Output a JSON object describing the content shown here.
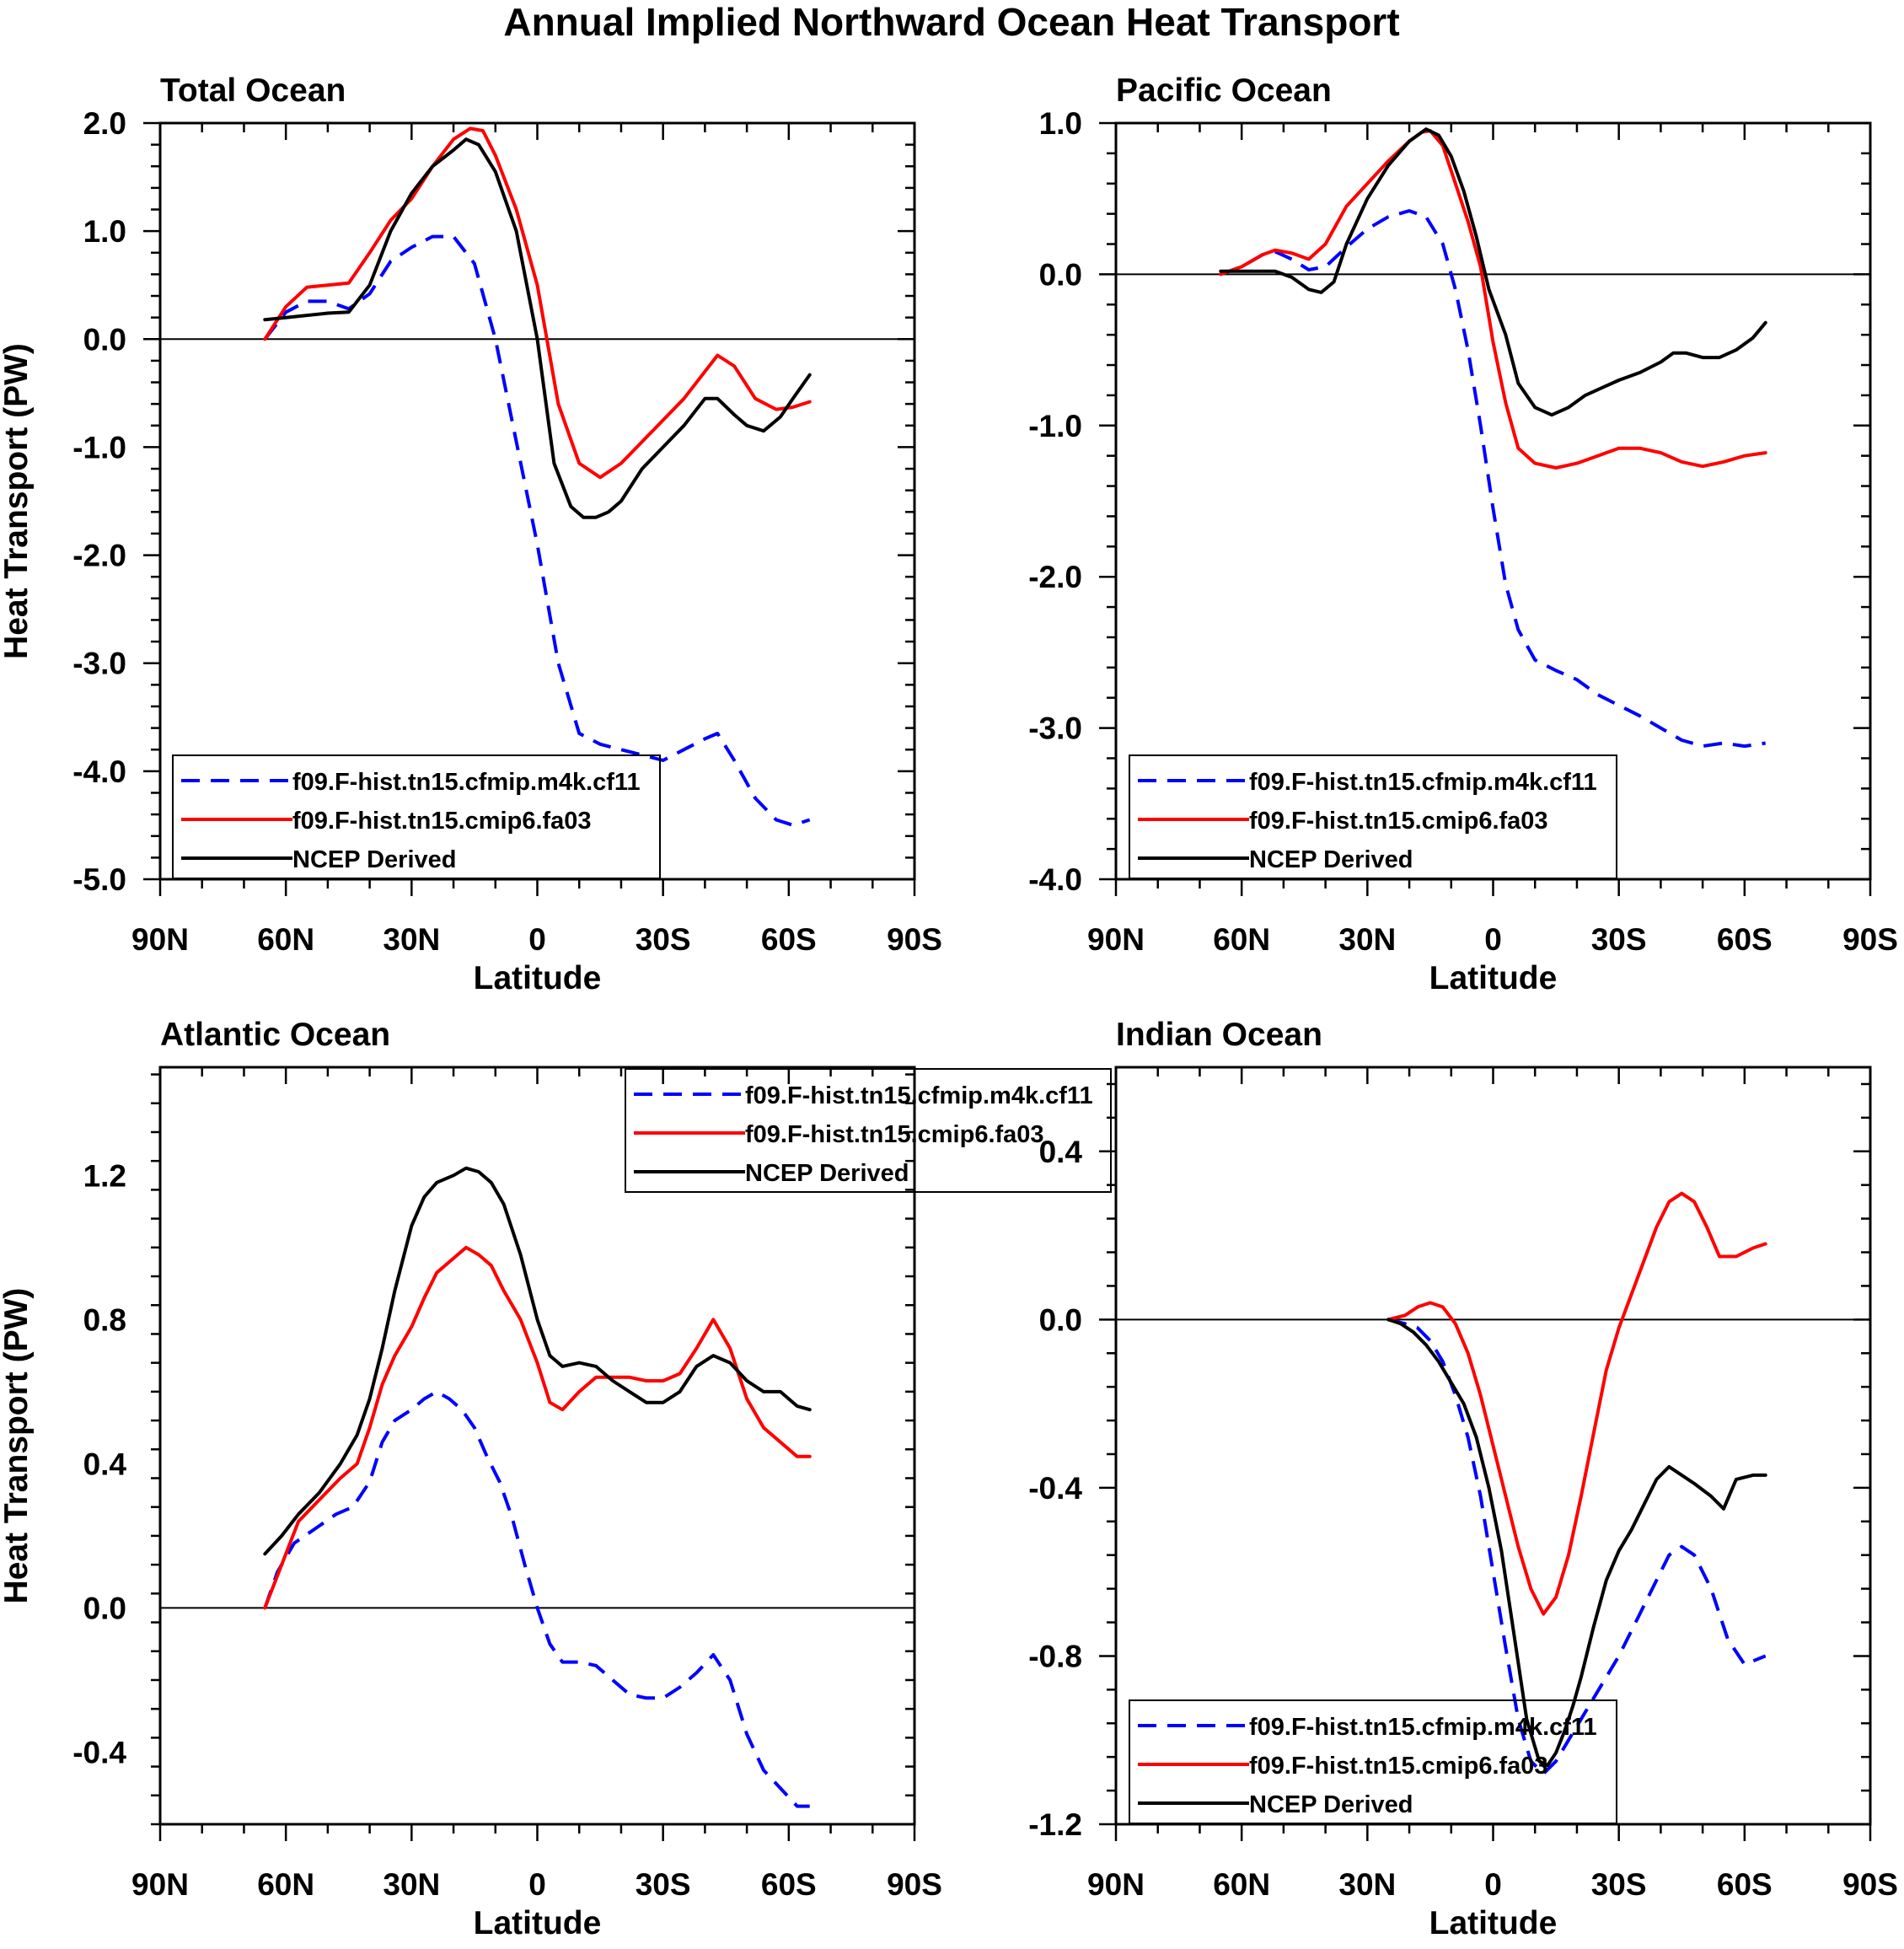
{
  "figure": {
    "title": "Annual Implied Northward Ocean Heat Transport"
  },
  "colors": {
    "model_a": "#0000ff",
    "model_b": "#ff0000",
    "obs": "#000000"
  },
  "legend_labels": [
    "f09.F-hist.tn15.cfmip.m4k.cf11",
    "f09.F-hist.tn15.cmip6.fa03",
    "NCEP Derived"
  ],
  "chart_data": [
    {
      "type": "line",
      "title": "Total Ocean",
      "xlabel": "Latitude",
      "ylabel": "Heat Transport (PW)",
      "xlim": [
        90,
        -90
      ],
      "ylim": [
        -5.0,
        2.0
      ],
      "xticks": [
        90,
        60,
        30,
        0,
        -30,
        -60,
        -90
      ],
      "xticklabels": [
        "90N",
        "60N",
        "30N",
        "0",
        "30S",
        "60S",
        "90S"
      ],
      "yticks": [
        2.0,
        1.0,
        0.0,
        -1.0,
        -2.0,
        -3.0,
        -4.0,
        -5.0
      ],
      "yticklabels": [
        "2.0",
        "1.0",
        "0.0",
        "-1.0",
        "-2.0",
        "-3.0",
        "-4.0",
        "-5.0"
      ],
      "legend_position": "bottom-left",
      "series": [
        {
          "name": "f09.F-hist.tn15.cfmip.m4k.cf11",
          "style": "dashed",
          "color": "#0000ff",
          "x": [
            65,
            60,
            55,
            50,
            45,
            40,
            35,
            30,
            25,
            20,
            15,
            10,
            5,
            0,
            -5,
            -10,
            -15,
            -20,
            -25,
            -30,
            -35,
            -40,
            -43,
            -47,
            -52,
            -57,
            -61,
            -65
          ],
          "y": [
            0.0,
            0.25,
            0.35,
            0.35,
            0.28,
            0.42,
            0.72,
            0.85,
            0.95,
            0.95,
            0.7,
            0.0,
            -0.95,
            -1.9,
            -3.0,
            -3.65,
            -3.75,
            -3.8,
            -3.85,
            -3.9,
            -3.8,
            -3.7,
            -3.65,
            -3.9,
            -4.25,
            -4.45,
            -4.5,
            -4.45
          ]
        },
        {
          "name": "f09.F-hist.tn15.cmip6.fa03",
          "style": "solid",
          "color": "#ff0000",
          "x": [
            65,
            60,
            55,
            50,
            45,
            40,
            35,
            30,
            25,
            20,
            16,
            13,
            10,
            5,
            0,
            -5,
            -10,
            -15,
            -20,
            -25,
            -30,
            -35,
            -40,
            -43,
            -47,
            -52,
            -57,
            -61,
            -65
          ],
          "y": [
            0.0,
            0.3,
            0.48,
            0.5,
            0.52,
            0.8,
            1.1,
            1.3,
            1.6,
            1.85,
            1.95,
            1.93,
            1.7,
            1.2,
            0.5,
            -0.6,
            -1.15,
            -1.28,
            -1.15,
            -0.95,
            -0.75,
            -0.55,
            -0.3,
            -0.15,
            -0.25,
            -0.55,
            -0.65,
            -0.63,
            -0.58
          ]
        },
        {
          "name": "NCEP Derived",
          "style": "solid",
          "color": "#000000",
          "x": [
            65,
            60,
            55,
            50,
            45,
            40,
            35,
            30,
            25,
            20,
            17,
            14,
            10,
            5,
            0,
            -4,
            -8,
            -11,
            -14,
            -17,
            -20,
            -25,
            -30,
            -35,
            -40,
            -43,
            -47,
            -50,
            -54,
            -58,
            -61,
            -65
          ],
          "y": [
            0.18,
            0.2,
            0.22,
            0.24,
            0.25,
            0.5,
            1.0,
            1.35,
            1.6,
            1.75,
            1.85,
            1.8,
            1.55,
            1.0,
            0.0,
            -1.15,
            -1.55,
            -1.65,
            -1.65,
            -1.6,
            -1.5,
            -1.2,
            -1.0,
            -0.8,
            -0.55,
            -0.55,
            -0.7,
            -0.8,
            -0.85,
            -0.72,
            -0.55,
            -0.33
          ]
        }
      ]
    },
    {
      "type": "line",
      "title": "Pacific Ocean",
      "xlabel": "Latitude",
      "ylabel": "",
      "xlim": [
        90,
        -90
      ],
      "ylim": [
        -4.0,
        1.0
      ],
      "xticks": [
        90,
        60,
        30,
        0,
        -30,
        -60,
        -90
      ],
      "xticklabels": [
        "90N",
        "60N",
        "30N",
        "0",
        "30S",
        "60S",
        "90S"
      ],
      "yticks": [
        1.0,
        0.0,
        -1.0,
        -2.0,
        -3.0,
        -4.0
      ],
      "yticklabels": [
        "1.0",
        "0.0",
        "-1.0",
        "-2.0",
        "-3.0",
        "-4.0"
      ],
      "legend_position": "bottom-left",
      "series": [
        {
          "name": "f09.F-hist.tn15.cfmip.m4k.cf11",
          "style": "dashed",
          "color": "#0000ff",
          "x": [
            65,
            60,
            55,
            52,
            48,
            44,
            40,
            35,
            30,
            25,
            20,
            16,
            12,
            9,
            6,
            3,
            0,
            -3,
            -6,
            -10,
            -15,
            -20,
            -25,
            -30,
            -35,
            -40,
            -45,
            -50,
            -55,
            -60,
            -65
          ],
          "y": [
            0.0,
            0.05,
            0.13,
            0.15,
            0.1,
            0.03,
            0.05,
            0.18,
            0.3,
            0.38,
            0.42,
            0.38,
            0.2,
            -0.1,
            -0.5,
            -1.0,
            -1.55,
            -2.05,
            -2.35,
            -2.55,
            -2.62,
            -2.68,
            -2.78,
            -2.85,
            -2.92,
            -3.0,
            -3.08,
            -3.12,
            -3.1,
            -3.12,
            -3.1
          ]
        },
        {
          "name": "f09.F-hist.tn15.cmip6.fa03",
          "style": "solid",
          "color": "#ff0000",
          "x": [
            65,
            60,
            55,
            52,
            48,
            44,
            40,
            35,
            30,
            25,
            20,
            17,
            15,
            12,
            9,
            6,
            3,
            0,
            -3,
            -6,
            -10,
            -15,
            -20,
            -25,
            -30,
            -35,
            -40,
            -45,
            -50,
            -55,
            -60,
            -65
          ],
          "y": [
            0.0,
            0.05,
            0.13,
            0.16,
            0.14,
            0.1,
            0.2,
            0.45,
            0.6,
            0.75,
            0.88,
            0.94,
            0.95,
            0.85,
            0.6,
            0.35,
            0.05,
            -0.45,
            -0.85,
            -1.15,
            -1.25,
            -1.28,
            -1.25,
            -1.2,
            -1.15,
            -1.15,
            -1.18,
            -1.24,
            -1.27,
            -1.24,
            -1.2,
            -1.18
          ]
        },
        {
          "name": "NCEP Derived",
          "style": "solid",
          "color": "#000000",
          "x": [
            65,
            60,
            55,
            52,
            48,
            44,
            41,
            38,
            35,
            30,
            25,
            20,
            16,
            13,
            10,
            7,
            4,
            1,
            -3,
            -6,
            -10,
            -14,
            -18,
            -22,
            -26,
            -30,
            -35,
            -40,
            -43,
            -46,
            -50,
            -54,
            -58,
            -62,
            -65
          ],
          "y": [
            0.02,
            0.02,
            0.02,
            0.02,
            -0.02,
            -0.1,
            -0.12,
            -0.05,
            0.2,
            0.5,
            0.72,
            0.88,
            0.96,
            0.92,
            0.78,
            0.55,
            0.25,
            -0.1,
            -0.4,
            -0.72,
            -0.88,
            -0.93,
            -0.88,
            -0.8,
            -0.75,
            -0.7,
            -0.65,
            -0.58,
            -0.52,
            -0.52,
            -0.55,
            -0.55,
            -0.5,
            -0.42,
            -0.32
          ]
        }
      ]
    },
    {
      "type": "line",
      "title": "Atlantic Ocean",
      "xlabel": "Latitude",
      "ylabel": "Heat Transport (PW)",
      "xlim": [
        90,
        -90
      ],
      "ylim": [
        -0.6,
        1.5
      ],
      "xticks": [
        90,
        60,
        30,
        0,
        -30,
        -60,
        -90
      ],
      "xticklabels": [
        "90N",
        "60N",
        "30N",
        "0",
        "30S",
        "60S",
        "90S"
      ],
      "yticks": [
        1.2,
        0.8,
        0.4,
        0.0,
        -0.4
      ],
      "yticklabels": [
        "1.2",
        "0.8",
        "0.4",
        "0.0",
        "-0.4"
      ],
      "legend_position": "top-right",
      "series": [
        {
          "name": "f09.F-hist.tn15.cfmip.m4k.cf11",
          "style": "dashed",
          "color": "#0000ff",
          "x": [
            65,
            62,
            58,
            53,
            48,
            44,
            40,
            37,
            34,
            30,
            27,
            24,
            21,
            18,
            15,
            12,
            9,
            6,
            3,
            0,
            -3,
            -6,
            -10,
            -14,
            -18,
            -22,
            -26,
            -30,
            -34,
            -38,
            -42,
            -46,
            -50,
            -54,
            -58,
            -62,
            -65
          ],
          "y": [
            0.0,
            0.1,
            0.18,
            0.22,
            0.26,
            0.28,
            0.35,
            0.46,
            0.52,
            0.55,
            0.58,
            0.6,
            0.58,
            0.55,
            0.5,
            0.42,
            0.35,
            0.25,
            0.12,
            0.0,
            -0.1,
            -0.15,
            -0.15,
            -0.16,
            -0.2,
            -0.24,
            -0.25,
            -0.25,
            -0.22,
            -0.18,
            -0.13,
            -0.2,
            -0.35,
            -0.45,
            -0.5,
            -0.55,
            -0.55
          ]
        },
        {
          "name": "f09.F-hist.tn15.cmip6.fa03",
          "style": "solid",
          "color": "#ff0000",
          "x": [
            65,
            61,
            57,
            52,
            47,
            43,
            40,
            37,
            34,
            30,
            27,
            24,
            20,
            17,
            14,
            11,
            8,
            4,
            0,
            -3,
            -6,
            -10,
            -14,
            -18,
            -22,
            -26,
            -30,
            -34,
            -38,
            -42,
            -46,
            -50,
            -54,
            -58,
            -62,
            -65
          ],
          "y": [
            0.0,
            0.12,
            0.24,
            0.3,
            0.36,
            0.4,
            0.5,
            0.62,
            0.7,
            0.78,
            0.86,
            0.93,
            0.97,
            1.0,
            0.98,
            0.95,
            0.88,
            0.8,
            0.68,
            0.57,
            0.55,
            0.6,
            0.64,
            0.64,
            0.64,
            0.63,
            0.63,
            0.65,
            0.72,
            0.8,
            0.72,
            0.58,
            0.5,
            0.46,
            0.42,
            0.42
          ]
        },
        {
          "name": "NCEP Derived",
          "style": "solid",
          "color": "#000000",
          "x": [
            65,
            61,
            57,
            52,
            47,
            43,
            40,
            37,
            34,
            30,
            27,
            24,
            20,
            17,
            14,
            11,
            8,
            4,
            0,
            -3,
            -6,
            -10,
            -14,
            -18,
            -22,
            -26,
            -30,
            -34,
            -38,
            -42,
            -46,
            -50,
            -54,
            -58,
            -62,
            -65
          ],
          "y": [
            0.15,
            0.2,
            0.26,
            0.32,
            0.4,
            0.48,
            0.58,
            0.72,
            0.88,
            1.06,
            1.14,
            1.18,
            1.2,
            1.22,
            1.21,
            1.18,
            1.12,
            0.98,
            0.8,
            0.7,
            0.67,
            0.68,
            0.67,
            0.63,
            0.6,
            0.57,
            0.57,
            0.6,
            0.67,
            0.7,
            0.68,
            0.63,
            0.6,
            0.6,
            0.56,
            0.55
          ]
        }
      ]
    },
    {
      "type": "line",
      "title": "Indian Ocean",
      "xlabel": "Latitude",
      "ylabel": "",
      "xlim": [
        90,
        -90
      ],
      "ylim": [
        -1.2,
        0.6
      ],
      "xticks": [
        90,
        60,
        30,
        0,
        -30,
        -60,
        -90
      ],
      "xticklabels": [
        "90N",
        "60N",
        "30N",
        "0",
        "30S",
        "60S",
        "90S"
      ],
      "yticks": [
        0.4,
        0.0,
        -0.4,
        -0.8,
        -1.2
      ],
      "yticklabels": [
        "0.4",
        "0.0",
        "-0.4",
        "-0.8",
        "-1.2"
      ],
      "legend_position": "bottom-left",
      "series": [
        {
          "name": "f09.F-hist.tn15.cfmip.m4k.cf11",
          "style": "dashed",
          "color": "#0000ff",
          "x": [
            25,
            21,
            18,
            15,
            12,
            9,
            6,
            3,
            0,
            -3,
            -6,
            -9,
            -12,
            -15,
            -18,
            -21,
            -24,
            -27,
            -30,
            -34,
            -38,
            -42,
            -45,
            -48,
            -52,
            -56,
            -60,
            -65
          ],
          "y": [
            0.0,
            -0.01,
            -0.02,
            -0.05,
            -0.1,
            -0.18,
            -0.28,
            -0.42,
            -0.6,
            -0.78,
            -0.95,
            -1.05,
            -1.08,
            -1.05,
            -1.0,
            -0.95,
            -0.9,
            -0.85,
            -0.8,
            -0.72,
            -0.64,
            -0.56,
            -0.54,
            -0.56,
            -0.64,
            -0.76,
            -0.82,
            -0.8
          ]
        },
        {
          "name": "f09.F-hist.tn15.cmip6.fa03",
          "style": "solid",
          "color": "#ff0000",
          "x": [
            25,
            21,
            18,
            15,
            12,
            9,
            6,
            3,
            0,
            -3,
            -6,
            -9,
            -12,
            -15,
            -18,
            -21,
            -24,
            -27,
            -30,
            -33,
            -36,
            -39,
            -42,
            -45,
            -48,
            -51,
            -54,
            -58,
            -62,
            -65
          ],
          "y": [
            0.0,
            0.01,
            0.03,
            0.04,
            0.03,
            -0.01,
            -0.08,
            -0.18,
            -0.3,
            -0.42,
            -0.54,
            -0.64,
            -0.7,
            -0.66,
            -0.56,
            -0.42,
            -0.27,
            -0.12,
            -0.02,
            0.06,
            0.14,
            0.22,
            0.28,
            0.3,
            0.28,
            0.22,
            0.15,
            0.15,
            0.17,
            0.18
          ]
        },
        {
          "name": "NCEP Derived",
          "style": "solid",
          "color": "#000000",
          "x": [
            25,
            22,
            19,
            16,
            13,
            10,
            7,
            4,
            1,
            -2,
            -5,
            -8,
            -11,
            -13,
            -15,
            -17,
            -19,
            -21,
            -24,
            -27,
            -30,
            -33,
            -36,
            -39,
            -42,
            -45,
            -48,
            -52,
            -55,
            -58,
            -62,
            -65
          ],
          "y": [
            0.0,
            -0.01,
            -0.03,
            -0.06,
            -0.1,
            -0.15,
            -0.2,
            -0.28,
            -0.4,
            -0.55,
            -0.75,
            -0.95,
            -1.05,
            -1.06,
            -1.03,
            -0.98,
            -0.92,
            -0.85,
            -0.73,
            -0.62,
            -0.55,
            -0.5,
            -0.44,
            -0.38,
            -0.35,
            -0.37,
            -0.39,
            -0.42,
            -0.45,
            -0.38,
            -0.37,
            -0.37
          ]
        }
      ]
    }
  ]
}
